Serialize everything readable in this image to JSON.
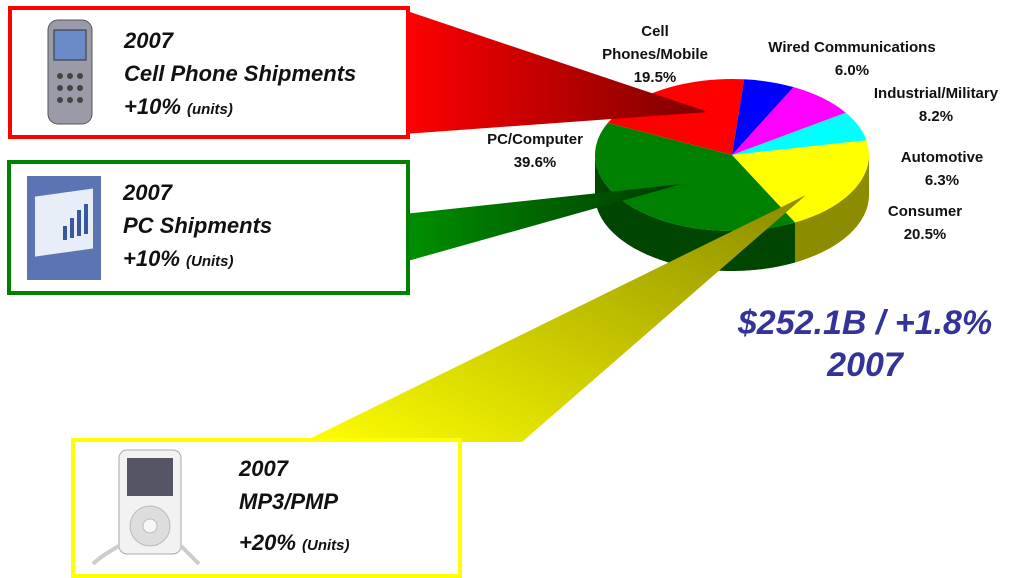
{
  "chart_data": {
    "type": "pie",
    "categories": [
      "Cell Phones/Mobile",
      "Wired Communications",
      "Industrial/Military",
      "Automotive",
      "Consumer",
      "PC/Computer"
    ],
    "values": [
      19.5,
      6.0,
      8.2,
      6.3,
      20.5,
      39.6
    ],
    "value_labels": [
      "19.5%",
      "6.0%",
      "8.2%",
      "6.3%",
      "20.5%",
      "39.6%"
    ],
    "colors": [
      "#ff0000",
      "#0000ff",
      "#ff00ff",
      "#00ffff",
      "#ffff00",
      "#008000"
    ],
    "total": "$252.1B / +1.8%",
    "total_year": "2007"
  },
  "callouts": [
    {
      "year": "2007",
      "title": "Cell Phone Shipments",
      "growth": "+10%",
      "note": "(units)",
      "color": "#ff0000"
    },
    {
      "year": "2007",
      "title": "PC Shipments",
      "growth": "+10%",
      "note": "(Units)",
      "color": "#008000"
    },
    {
      "year": "2007",
      "title": "MP3/PMP",
      "growth": "+20%",
      "note": "(Units)",
      "color": "#ffff00"
    }
  ]
}
